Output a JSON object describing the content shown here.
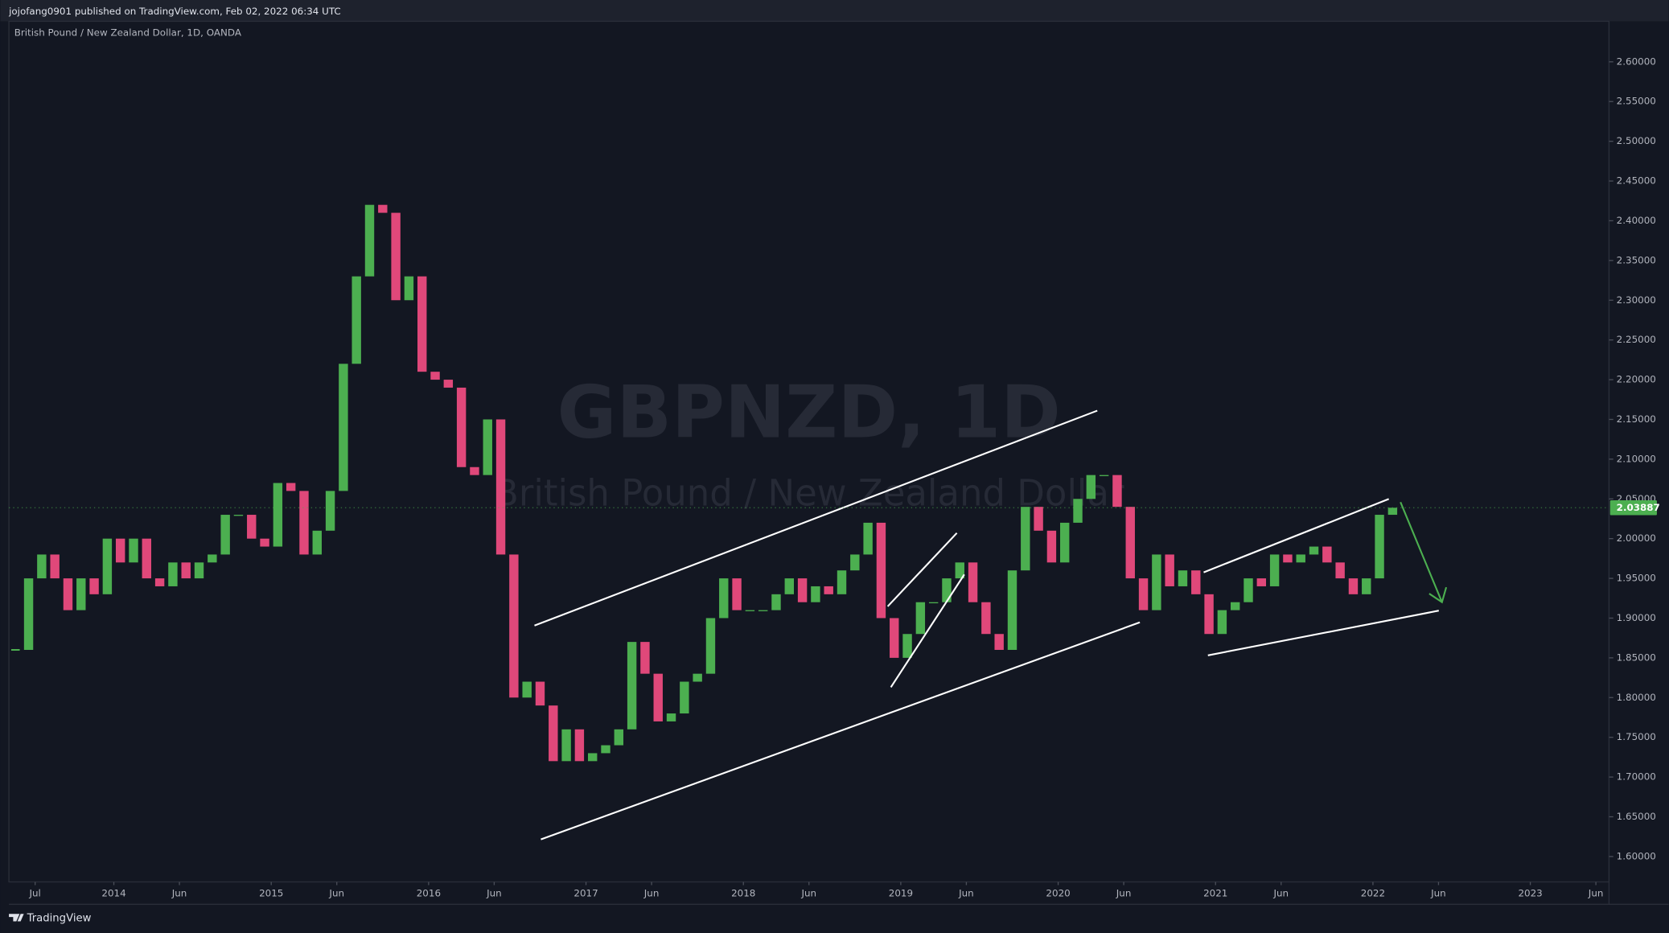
{
  "header": "jojofang0901 published on TradingView.com, Feb 02, 2022 06:34 UTC",
  "footer": "TradingView",
  "chart_data": {
    "type": "candlestick",
    "symbol_label": "British Pound / New Zealand Dollar, 1D, OANDA",
    "watermark": "GBPNZD, 1D",
    "watermark_subtitle": "British Pound / New Zealand Dollar",
    "up_color": "#4caf50",
    "down_color": "#e0487a",
    "grid": false,
    "x": [
      "2013-05",
      "2013-06",
      "2013-07",
      "2013-08",
      "2013-09",
      "2013-10",
      "2013-11",
      "2013-12",
      "2014-01",
      "2014-02",
      "2014-03",
      "2014-04",
      "2014-05",
      "2014-06",
      "2014-07",
      "2014-08",
      "2014-09",
      "2014-10",
      "2014-11",
      "2014-12",
      "2015-01",
      "2015-02",
      "2015-03",
      "2015-04",
      "2015-05",
      "2015-06",
      "2015-07",
      "2015-08",
      "2015-09",
      "2015-10",
      "2015-11",
      "2015-12",
      "2016-01",
      "2016-02",
      "2016-03",
      "2016-04",
      "2016-05",
      "2016-06",
      "2016-07",
      "2016-08",
      "2016-09",
      "2016-10",
      "2016-11",
      "2016-12",
      "2017-01",
      "2017-02",
      "2017-03",
      "2017-04",
      "2017-05",
      "2017-06",
      "2017-07",
      "2017-08",
      "2017-09",
      "2017-10",
      "2017-11",
      "2017-12",
      "2018-01",
      "2018-02",
      "2018-03",
      "2018-04",
      "2018-05",
      "2018-06",
      "2018-07",
      "2018-08",
      "2018-09",
      "2018-10",
      "2018-11",
      "2018-12",
      "2019-01",
      "2019-02",
      "2019-03",
      "2019-04",
      "2019-05",
      "2019-06",
      "2019-07",
      "2019-08",
      "2019-09",
      "2019-10",
      "2019-11",
      "2019-12",
      "2020-01",
      "2020-02",
      "2020-03",
      "2020-04",
      "2020-05",
      "2020-06",
      "2020-07",
      "2020-08",
      "2020-09",
      "2020-10",
      "2020-11",
      "2020-12",
      "2021-01",
      "2021-02",
      "2021-03",
      "2021-04",
      "2021-05",
      "2021-06",
      "2021-07",
      "2021-08",
      "2021-09",
      "2021-10",
      "2021-11",
      "2021-12",
      "2022-01",
      "2022-02"
    ],
    "values": [
      1.86,
      1.95,
      1.98,
      1.95,
      1.91,
      1.95,
      1.93,
      2.0,
      1.97,
      2.0,
      1.95,
      1.94,
      1.97,
      1.95,
      1.97,
      1.98,
      2.03,
      2.03,
      2.0,
      1.99,
      2.07,
      2.06,
      1.98,
      2.01,
      2.06,
      2.22,
      2.33,
      2.42,
      2.41,
      2.3,
      2.33,
      2.21,
      2.2,
      2.19,
      2.09,
      2.08,
      2.15,
      1.98,
      1.8,
      1.82,
      1.79,
      1.72,
      1.76,
      1.72,
      1.73,
      1.74,
      1.76,
      1.87,
      1.83,
      1.77,
      1.78,
      1.82,
      1.83,
      1.9,
      1.95,
      1.91,
      1.91,
      1.91,
      1.93,
      1.95,
      1.92,
      1.94,
      1.93,
      1.96,
      1.98,
      2.02,
      1.9,
      1.85,
      1.88,
      1.92,
      1.92,
      1.95,
      1.97,
      1.92,
      1.88,
      1.86,
      1.96,
      2.04,
      2.01,
      1.97,
      2.02,
      2.05,
      2.08,
      2.08,
      2.04,
      1.95,
      1.91,
      1.98,
      1.94,
      1.96,
      1.93,
      1.88,
      1.91,
      1.92,
      1.95,
      1.94,
      1.98,
      1.97,
      1.98,
      1.99,
      1.97,
      1.95,
      1.93,
      1.95,
      2.03,
      2.03887
    ],
    "last_price": 2.03887,
    "xlim": [
      "2013-05",
      "2023-07"
    ],
    "xticks": [
      {
        "value": "2013-07",
        "label": "Jul"
      },
      {
        "value": "2014-01",
        "label": "2014"
      },
      {
        "value": "2014-06",
        "label": "Jun"
      },
      {
        "value": "2015-01",
        "label": "2015"
      },
      {
        "value": "2015-06",
        "label": "Jun"
      },
      {
        "value": "2016-01",
        "label": "2016"
      },
      {
        "value": "2016-06",
        "label": "Jun"
      },
      {
        "value": "2017-01",
        "label": "2017"
      },
      {
        "value": "2017-06",
        "label": "Jun"
      },
      {
        "value": "2018-01",
        "label": "2018"
      },
      {
        "value": "2018-06",
        "label": "Jun"
      },
      {
        "value": "2019-01",
        "label": "2019"
      },
      {
        "value": "2019-06",
        "label": "Jun"
      },
      {
        "value": "2020-01",
        "label": "2020"
      },
      {
        "value": "2020-06",
        "label": "Jun"
      },
      {
        "value": "2021-01",
        "label": "2021"
      },
      {
        "value": "2021-06",
        "label": "Jun"
      },
      {
        "value": "2022-01",
        "label": "2022"
      },
      {
        "value": "2022-06",
        "label": "Jun"
      },
      {
        "value": "2023-01",
        "label": "2023"
      },
      {
        "value": "2023-06",
        "label": "Jun"
      }
    ],
    "ylim": [
      1.568,
      2.651
    ],
    "yticks": [
      {
        "value": 1.6,
        "label": "1.60000"
      },
      {
        "value": 1.65,
        "label": "1.65000"
      },
      {
        "value": 1.7,
        "label": "1.70000"
      },
      {
        "value": 1.75,
        "label": "1.75000"
      },
      {
        "value": 1.8,
        "label": "1.80000"
      },
      {
        "value": 1.85,
        "label": "1.85000"
      },
      {
        "value": 1.9,
        "label": "1.90000"
      },
      {
        "value": 1.95,
        "label": "1.95000"
      },
      {
        "value": 2.0,
        "label": "2.00000"
      },
      {
        "value": 2.05,
        "label": "2.05000"
      },
      {
        "value": 2.1,
        "label": "2.10000"
      },
      {
        "value": 2.15,
        "label": "2.15000"
      },
      {
        "value": 2.2,
        "label": "2.20000"
      },
      {
        "value": 2.25,
        "label": "2.25000"
      },
      {
        "value": 2.3,
        "label": "2.30000"
      },
      {
        "value": 2.35,
        "label": "2.35000"
      },
      {
        "value": 2.4,
        "label": "2.40000"
      },
      {
        "value": 2.45,
        "label": "2.45000"
      },
      {
        "value": 2.5,
        "label": "2.50000"
      },
      {
        "value": 2.55,
        "label": "2.55000"
      },
      {
        "value": 2.6,
        "label": "2.60000"
      }
    ]
  }
}
